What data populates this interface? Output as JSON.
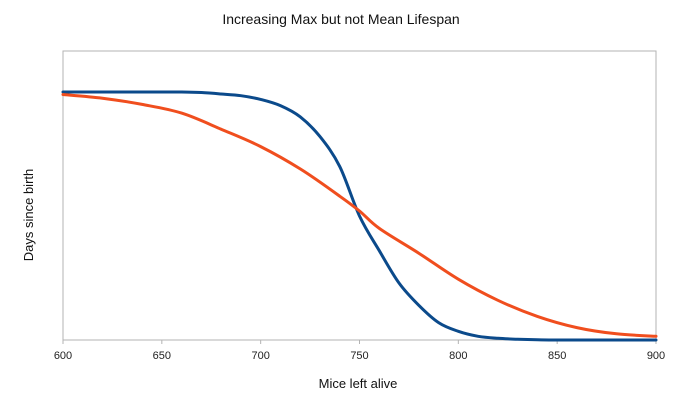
{
  "chart_data": {
    "type": "line",
    "title": "Increasing Max but not Mean Lifespan",
    "xlabel": "Mice left alive",
    "ylabel": "Days since birth",
    "xlim": [
      600,
      900
    ],
    "x_ticks": [
      "600",
      "650",
      "700",
      "750",
      "800",
      "850",
      "900"
    ],
    "x_tick_values": [
      600,
      650,
      700,
      750,
      800,
      850,
      900
    ],
    "ylim": [
      0,
      1
    ],
    "y_tick_labels_shown": false,
    "grid": false,
    "legend": "none",
    "series": [
      {
        "color": "#0b4a8b",
        "x": [
          600,
          620,
          640,
          660,
          670,
          680,
          690,
          700,
          710,
          720,
          730,
          740,
          750,
          760,
          770,
          780,
          790,
          800,
          810,
          820,
          830,
          840,
          850,
          870,
          900
        ],
        "values": [
          1.0,
          1.0,
          1.0,
          1.0,
          0.998,
          0.992,
          0.985,
          0.97,
          0.945,
          0.9,
          0.82,
          0.7,
          0.5,
          0.36,
          0.23,
          0.14,
          0.07,
          0.035,
          0.015,
          0.007,
          0.003,
          0.001,
          0.0,
          0.0,
          0.0
        ]
      },
      {
        "color": "#f04e1e",
        "x": [
          600,
          620,
          640,
          660,
          680,
          700,
          720,
          740,
          750,
          760,
          780,
          800,
          820,
          840,
          860,
          880,
          900
        ],
        "values": [
          0.99,
          0.975,
          0.95,
          0.915,
          0.85,
          0.78,
          0.69,
          0.58,
          0.52,
          0.45,
          0.35,
          0.245,
          0.16,
          0.095,
          0.05,
          0.025,
          0.015
        ]
      }
    ]
  }
}
